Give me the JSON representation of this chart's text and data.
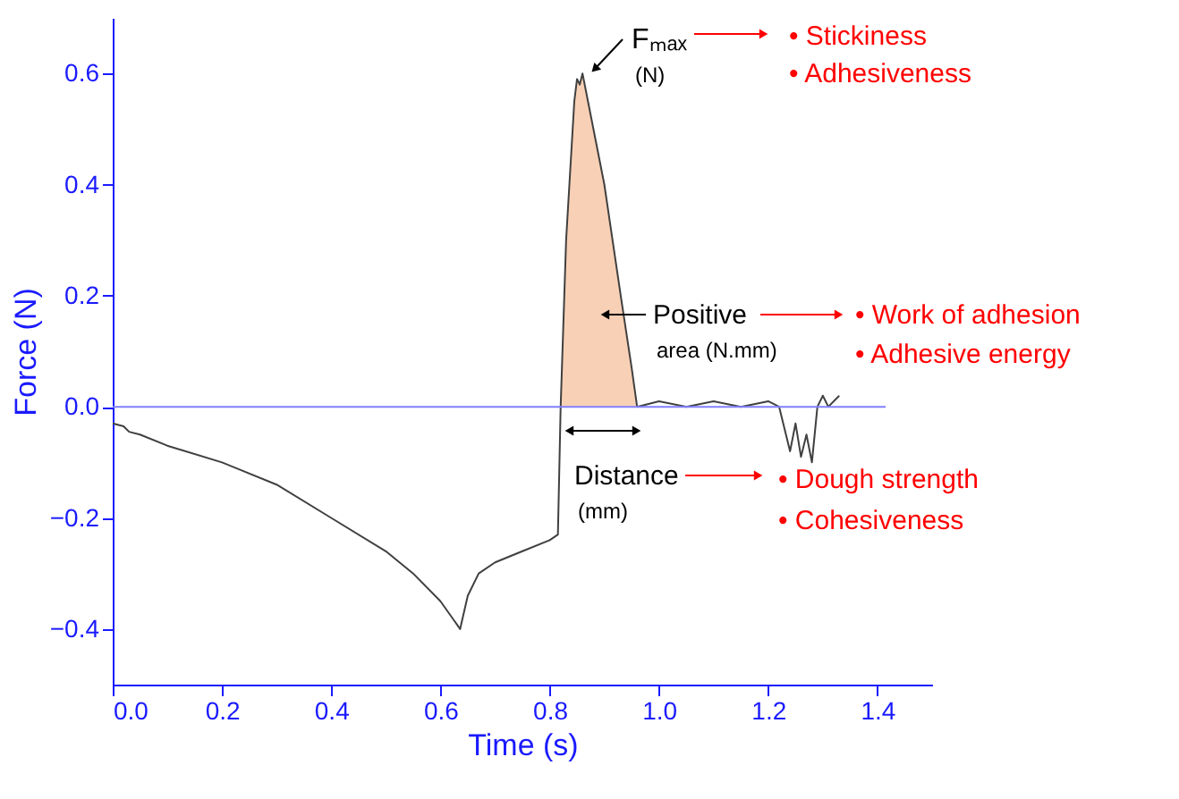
{
  "chart_data": {
    "type": "line",
    "xlabel": "Time (s)",
    "ylabel": "Force (N)",
    "xlim": [
      0,
      1.5
    ],
    "ylim": [
      -0.5,
      0.7
    ],
    "xticks": [
      {
        "value": 0,
        "label": "0.0"
      },
      0.2,
      0.4,
      0.6,
      0.8,
      {
        "value": 1,
        "label": "1.0"
      },
      1.2,
      1.4
    ],
    "yticks": [
      -0.4,
      -0.2,
      {
        "value": 0,
        "label": "0.0"
      },
      0.2,
      0.4,
      0.6
    ],
    "grid": false,
    "series": [
      {
        "type": "area",
        "color": "#f4b183",
        "x": [
          0.82,
          0.83,
          0.845,
          0.85,
          0.855,
          0.86,
          0.87,
          0.9,
          0.93,
          0.95,
          0.96
        ],
        "values": [
          0.0,
          0.3,
          0.55,
          0.59,
          0.58,
          0.6,
          0.55,
          0.4,
          0.2,
          0.07,
          0.0
        ]
      },
      {
        "color": "#404040",
        "x": [
          0.0,
          0.02,
          0.03,
          0.05,
          0.1,
          0.2,
          0.3,
          0.4,
          0.5,
          0.55,
          0.6,
          0.636,
          0.65,
          0.67,
          0.7,
          0.75,
          0.8,
          0.815,
          0.82,
          0.83,
          0.845,
          0.85,
          0.855,
          0.86,
          0.87,
          0.9,
          0.93,
          0.95,
          0.96,
          1.0,
          1.05,
          1.1,
          1.15,
          1.2,
          1.22,
          1.24,
          1.25,
          1.26,
          1.27,
          1.28,
          1.29,
          1.3,
          1.31,
          1.33
        ],
        "values": [
          -0.03,
          -0.035,
          -0.045,
          -0.05,
          -0.07,
          -0.1,
          -0.14,
          -0.2,
          -0.26,
          -0.3,
          -0.35,
          -0.4,
          -0.34,
          -0.3,
          -0.28,
          -0.26,
          -0.24,
          -0.23,
          0.0,
          0.3,
          0.55,
          0.59,
          0.58,
          0.6,
          0.55,
          0.4,
          0.2,
          0.07,
          0.0,
          0.01,
          0.0,
          0.01,
          0.0,
          0.01,
          0.0,
          -0.08,
          -0.03,
          -0.09,
          -0.05,
          -0.1,
          0.0,
          0.02,
          0.0,
          0.02
        ]
      }
    ],
    "ref_lines": [
      {
        "axis": "y",
        "value": 0,
        "color": "#8080ff"
      }
    ],
    "annotations": [
      "Fₘₐₓ (N)",
      "• Stickiness",
      "• Adhesiveness",
      "Positive area (N.mm)",
      "• Work of adhesion",
      "• Adhesive energy",
      "Distance (mm)",
      "• Dough strength",
      "• Cohesiveness"
    ]
  }
}
